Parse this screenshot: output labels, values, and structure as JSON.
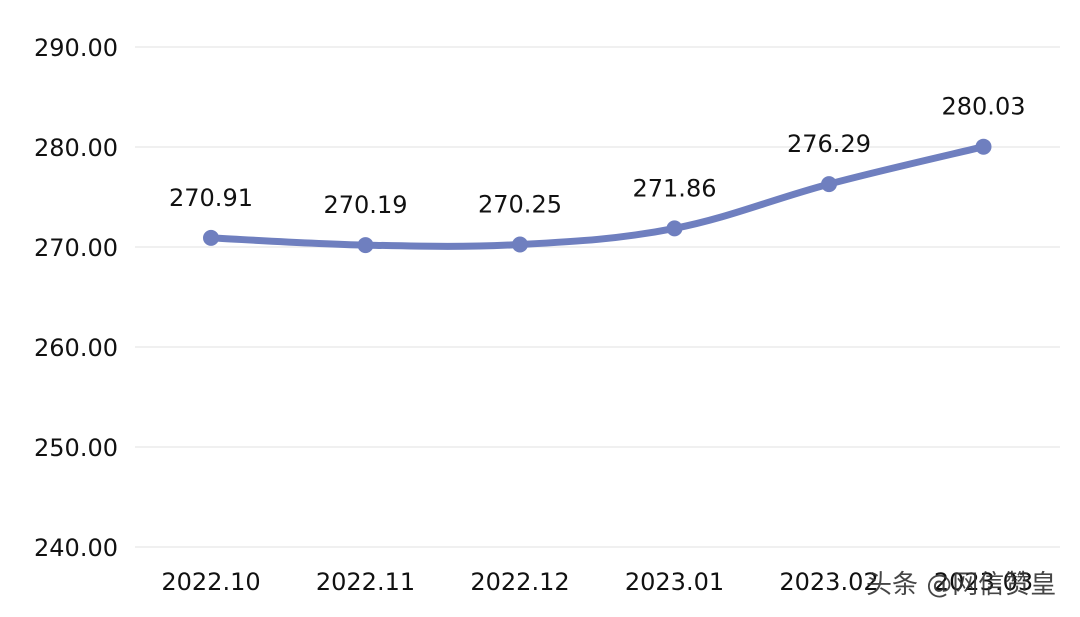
{
  "chart_data": {
    "type": "line",
    "categories": [
      "2022.10",
      "2022.11",
      "2022.12",
      "2023.01",
      "2023.02",
      "2023.03"
    ],
    "series": [
      {
        "values": [
          270.91,
          270.19,
          270.25,
          271.86,
          276.29,
          280.03
        ],
        "data_labels": [
          "270.91",
          "270.19",
          "270.25",
          "271.86",
          "276.29",
          "280.03"
        ],
        "color": "#6f7fbf"
      }
    ],
    "y_ticks": [
      "240.00",
      "250.00",
      "260.00",
      "270.00",
      "280.00",
      "290.00"
    ],
    "ylim": [
      240,
      290
    ],
    "grid": "horizontal",
    "smooth": true,
    "colors": {
      "grid": "#ebebeb",
      "text": "#111111"
    }
  },
  "watermark": {
    "text": "头条 @网信赞皇"
  }
}
